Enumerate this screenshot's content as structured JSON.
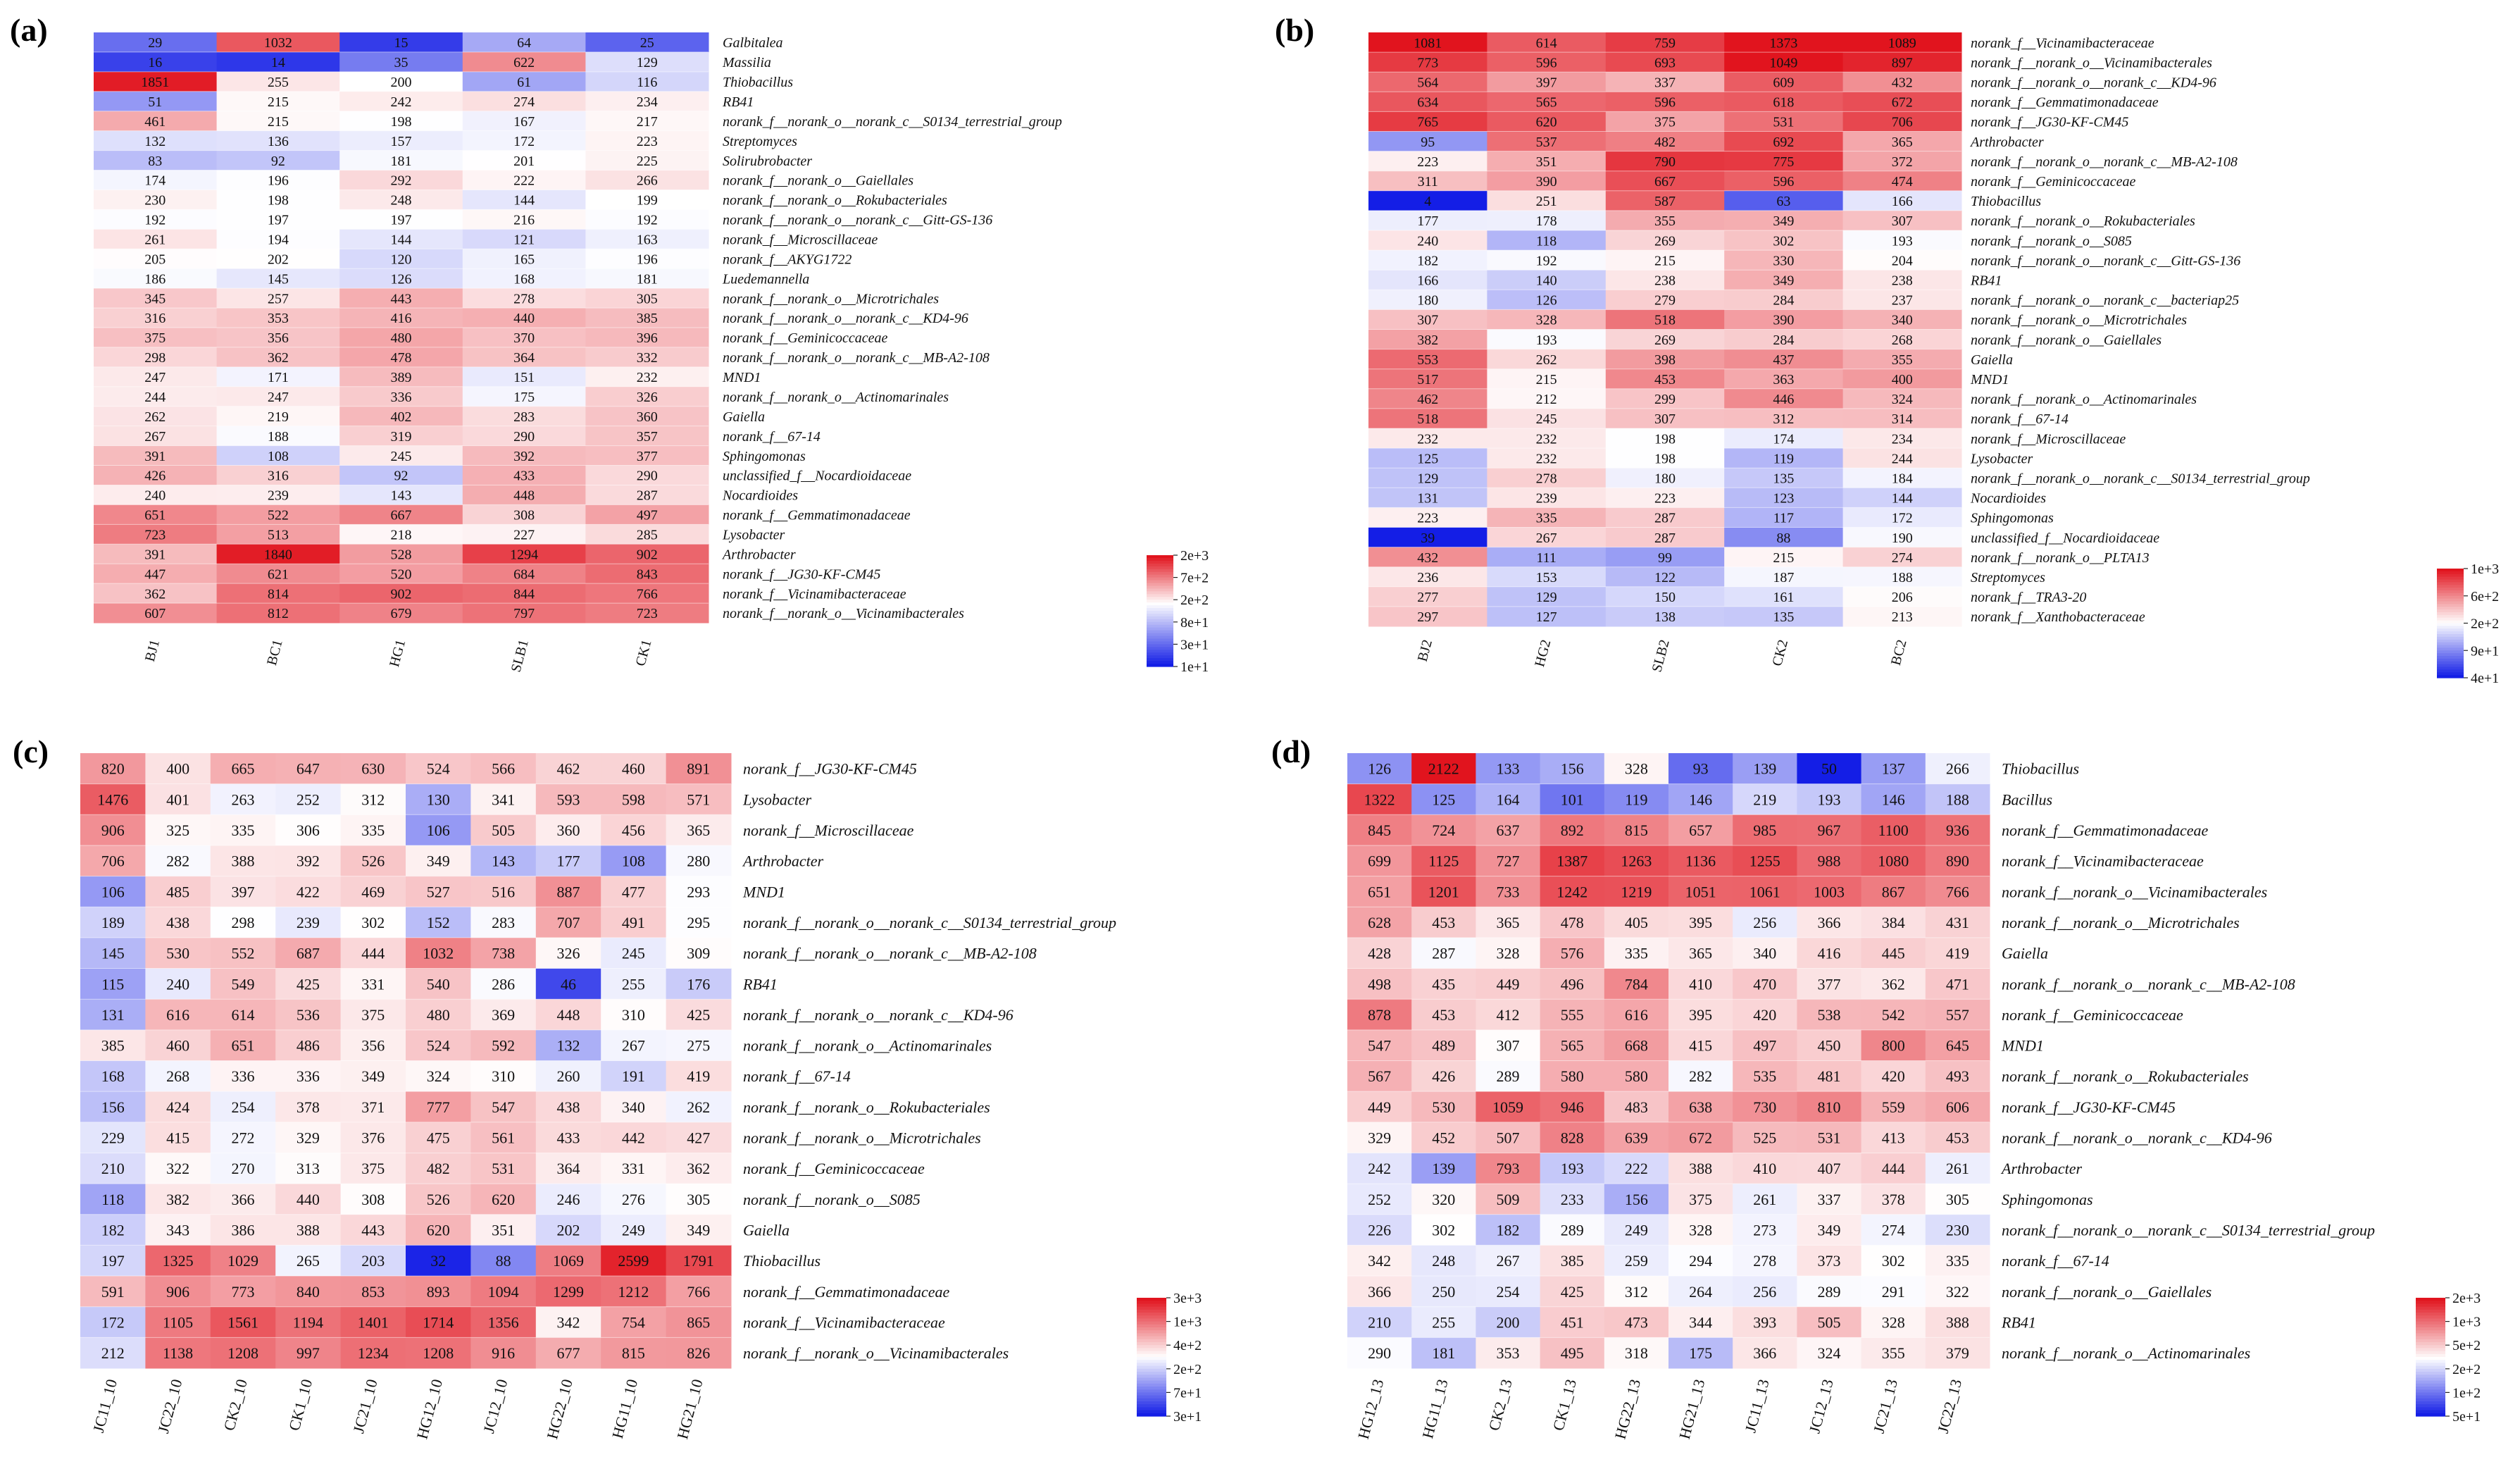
{
  "chart_data": [
    {
      "type": "heatmap",
      "panel": "(a)",
      "columns": [
        "BJ1",
        "BC1",
        "HG1",
        "SLB1",
        "CK1"
      ],
      "rows": [
        "Galbitalea",
        "Massilia",
        "Thiobacillus",
        "RB41",
        "norank_f__norank_o__norank_c__S0134_terrestrial_group",
        "Streptomyces",
        "Solirubrobacter",
        "norank_f__norank_o__Gaiellales",
        "norank_f__norank_o__Rokubacteriales",
        "norank_f__norank_o__norank_c__Gitt-GS-136",
        "norank_f__Microscillaceae",
        "norank_f__AKYG1722",
        "Luedemannella",
        "norank_f__norank_o__Microtrichales",
        "norank_f__norank_o__norank_c__KD4-96",
        "norank_f__Geminicoccaceae",
        "norank_f__norank_o__norank_c__MB-A2-108",
        "MND1",
        "norank_f__norank_o__Actinomarinales",
        "Gaiella",
        "norank_f__67-14",
        "Sphingomonas",
        "unclassified_f__Nocardioidaceae",
        "Nocardioides",
        "norank_f__Gemmatimonadaceae",
        "Lysobacter",
        "Arthrobacter",
        "norank_f__JG30-KF-CM45",
        "norank_f__Vicinamibacteraceae",
        "norank_f__norank_o__Vicinamibacterales"
      ],
      "values": [
        [
          29,
          1032,
          15,
          64,
          25
        ],
        [
          16,
          14,
          35,
          622,
          129
        ],
        [
          1851,
          255,
          200,
          61,
          116
        ],
        [
          51,
          215,
          242,
          274,
          234
        ],
        [
          461,
          215,
          198,
          167,
          217
        ],
        [
          132,
          136,
          157,
          172,
          223
        ],
        [
          83,
          92,
          181,
          201,
          225
        ],
        [
          174,
          196,
          292,
          222,
          266
        ],
        [
          230,
          198,
          248,
          144,
          199
        ],
        [
          192,
          197,
          197,
          216,
          192
        ],
        [
          261,
          194,
          144,
          121,
          163
        ],
        [
          205,
          202,
          120,
          165,
          196
        ],
        [
          186,
          145,
          126,
          168,
          181
        ],
        [
          345,
          257,
          443,
          278,
          305
        ],
        [
          316,
          353,
          416,
          440,
          385
        ],
        [
          375,
          356,
          480,
          370,
          396
        ],
        [
          298,
          362,
          478,
          364,
          332
        ],
        [
          247,
          171,
          389,
          151,
          232
        ],
        [
          244,
          247,
          336,
          175,
          326
        ],
        [
          262,
          219,
          402,
          283,
          360
        ],
        [
          267,
          188,
          319,
          290,
          357
        ],
        [
          391,
          108,
          245,
          392,
          377
        ],
        [
          426,
          316,
          92,
          433,
          290
        ],
        [
          240,
          239,
          143,
          448,
          287
        ],
        [
          651,
          522,
          667,
          308,
          497
        ],
        [
          723,
          513,
          218,
          227,
          285
        ],
        [
          391,
          1840,
          528,
          1294,
          902
        ],
        [
          447,
          621,
          520,
          684,
          843
        ],
        [
          362,
          814,
          902,
          844,
          766
        ],
        [
          607,
          812,
          679,
          797,
          723
        ]
      ],
      "scale": "log",
      "vmin": 10,
      "vmid": 200,
      "vmax": 2000,
      "legend_ticks": [
        "2e+3",
        "7e+2",
        "2e+2",
        "8e+1",
        "3e+1",
        "1e+1"
      ]
    },
    {
      "type": "heatmap",
      "panel": "(b)",
      "columns": [
        "BJ2",
        "HG2",
        "SLB2",
        "CK2",
        "BC2"
      ],
      "rows": [
        "norank_f__Vicinamibacteraceae",
        "norank_f__norank_o__Vicinamibacterales",
        "norank_f__norank_o__norank_c__KD4-96",
        "norank_f__Gemmatimonadaceae",
        "norank_f__JG30-KF-CM45",
        "Arthrobacter",
        "norank_f__norank_o__norank_c__MB-A2-108",
        "norank_f__Geminicoccaceae",
        "Thiobacillus",
        "norank_f__norank_o__Rokubacteriales",
        "norank_f__norank_o__S085",
        "norank_f__norank_o__norank_c__Gitt-GS-136",
        "RB41",
        "norank_f__norank_o__norank_c__bacteriap25",
        "norank_f__norank_o__Microtrichales",
        "norank_f__norank_o__Gaiellales",
        "Gaiella",
        "MND1",
        "norank_f__norank_o__Actinomarinales",
        "norank_f__67-14",
        "norank_f__Microscillaceae",
        "Lysobacter",
        "norank_f__norank_o__norank_c__S0134_terrestrial_group",
        "Nocardioides",
        "Sphingomonas",
        "unclassified_f__Nocardioidaceae",
        "norank_f__norank_o__PLTA13",
        "Streptomyces",
        "norank_f__TRA3-20",
        "norank_f__Xanthobacteraceae"
      ],
      "values": [
        [
          1081,
          614,
          759,
          1373,
          1089
        ],
        [
          773,
          596,
          693,
          1049,
          897
        ],
        [
          564,
          397,
          337,
          609,
          432
        ],
        [
          634,
          565,
          596,
          618,
          672
        ],
        [
          765,
          620,
          375,
          531,
          706
        ],
        [
          95,
          537,
          482,
          692,
          365
        ],
        [
          223,
          351,
          790,
          775,
          372
        ],
        [
          311,
          390,
          667,
          596,
          474
        ],
        [
          4,
          251,
          587,
          63,
          166
        ],
        [
          177,
          178,
          355,
          349,
          307
        ],
        [
          240,
          118,
          269,
          302,
          193
        ],
        [
          182,
          192,
          215,
          330,
          204
        ],
        [
          166,
          140,
          238,
          349,
          238
        ],
        [
          180,
          126,
          279,
          284,
          237
        ],
        [
          307,
          328,
          518,
          390,
          340
        ],
        [
          382,
          193,
          269,
          284,
          268
        ],
        [
          553,
          262,
          398,
          437,
          355
        ],
        [
          517,
          215,
          453,
          363,
          400
        ],
        [
          462,
          212,
          299,
          446,
          324
        ],
        [
          518,
          245,
          307,
          312,
          314
        ],
        [
          232,
          232,
          198,
          174,
          234
        ],
        [
          125,
          232,
          198,
          119,
          244
        ],
        [
          129,
          278,
          180,
          135,
          184
        ],
        [
          131,
          239,
          223,
          123,
          144
        ],
        [
          223,
          335,
          287,
          117,
          172
        ],
        [
          39,
          267,
          287,
          88,
          190
        ],
        [
          432,
          111,
          99,
          215,
          274
        ],
        [
          236,
          153,
          122,
          187,
          188
        ],
        [
          277,
          129,
          150,
          161,
          206
        ],
        [
          297,
          127,
          138,
          135,
          213
        ]
      ],
      "scale": "log",
      "vmin": 40,
      "vmid": 200,
      "vmax": 1000,
      "legend_ticks": [
        "1e+3",
        "6e+2",
        "2e+2",
        "9e+1",
        "4e+1"
      ]
    },
    {
      "type": "heatmap",
      "panel": "(c)",
      "columns": [
        "JC11_10",
        "JC22_10",
        "CK2_10",
        "CK1_10",
        "JC21_10",
        "HG12_10",
        "JC12_10",
        "HG22_10",
        "HG11_10",
        "HG21_10"
      ],
      "rows": [
        "norank_f__JG30-KF-CM45",
        "Lysobacter",
        "norank_f__Microscillaceae",
        "Arthrobacter",
        "MND1",
        "norank_f__norank_o__norank_c__S0134_terrestrial_group",
        "norank_f__norank_o__norank_c__MB-A2-108",
        "RB41",
        "norank_f__norank_o__norank_c__KD4-96",
        "norank_f__norank_o__Actinomarinales",
        "norank_f__67-14",
        "norank_f__norank_o__Rokubacteriales",
        "norank_f__norank_o__Microtrichales",
        "norank_f__Geminicoccaceae",
        "norank_f__norank_o__S085",
        "Gaiella",
        "Thiobacillus",
        "norank_f__Gemmatimonadaceae",
        "norank_f__Vicinamibacteraceae",
        "norank_f__norank_o__Vicinamibacterales"
      ],
      "values": [
        [
          820,
          400,
          665,
          647,
          630,
          524,
          566,
          462,
          460,
          891
        ],
        [
          1476,
          401,
          263,
          252,
          312,
          130,
          341,
          593,
          598,
          571
        ],
        [
          906,
          325,
          335,
          306,
          335,
          106,
          505,
          360,
          456,
          365
        ],
        [
          706,
          282,
          388,
          392,
          526,
          349,
          143,
          177,
          108,
          280
        ],
        [
          106,
          485,
          397,
          422,
          469,
          527,
          516,
          887,
          477,
          293
        ],
        [
          189,
          438,
          298,
          239,
          302,
          152,
          283,
          707,
          491,
          295
        ],
        [
          145,
          530,
          552,
          687,
          444,
          1032,
          738,
          326,
          245,
          309
        ],
        [
          115,
          240,
          549,
          425,
          331,
          540,
          286,
          46,
          255,
          176
        ],
        [
          131,
          616,
          614,
          536,
          375,
          480,
          369,
          448,
          310,
          425
        ],
        [
          385,
          460,
          651,
          486,
          356,
          524,
          592,
          132,
          267,
          275
        ],
        [
          168,
          268,
          336,
          336,
          349,
          324,
          310,
          260,
          191,
          419
        ],
        [
          156,
          424,
          254,
          378,
          371,
          777,
          547,
          438,
          340,
          262
        ],
        [
          229,
          415,
          272,
          329,
          376,
          475,
          561,
          433,
          442,
          427
        ],
        [
          210,
          322,
          270,
          313,
          375,
          482,
          531,
          364,
          331,
          362
        ],
        [
          118,
          382,
          366,
          440,
          308,
          526,
          620,
          246,
          276,
          305
        ],
        [
          182,
          343,
          386,
          388,
          443,
          620,
          351,
          202,
          249,
          349
        ],
        [
          197,
          1325,
          1029,
          265,
          203,
          32,
          88,
          1069,
          2599,
          1791
        ],
        [
          591,
          906,
          773,
          840,
          853,
          893,
          1094,
          1299,
          1212,
          766
        ],
        [
          172,
          1105,
          1561,
          1194,
          1401,
          1714,
          1356,
          342,
          754,
          865
        ],
        [
          212,
          1138,
          1208,
          997,
          1234,
          1208,
          916,
          677,
          815,
          826
        ]
      ],
      "scale": "log",
      "vmin": 30,
      "vmid": 300,
      "vmax": 3000,
      "legend_ticks": [
        "3e+3",
        "1e+3",
        "4e+2",
        "2e+2",
        "7e+1",
        "3e+1"
      ]
    },
    {
      "type": "heatmap",
      "panel": "(d)",
      "columns": [
        "HG12_13",
        "HG11_13",
        "CK2_13",
        "CK1_13",
        "HG22_13",
        "HG21_13",
        "JC11_13",
        "JC12_13",
        "JC21_13",
        "JC22_13"
      ],
      "rows": [
        "Thiobacillus",
        "Bacillus",
        "norank_f__Gemmatimonadaceae",
        "norank_f__Vicinamibacteraceae",
        "norank_f__norank_o__Vicinamibacterales",
        "norank_f__norank_o__Microtrichales",
        "Gaiella",
        "norank_f__norank_o__norank_c__MB-A2-108",
        "norank_f__Geminicoccaceae",
        "MND1",
        "norank_f__norank_o__Rokubacteriales",
        "norank_f__JG30-KF-CM45",
        "norank_f__norank_o__norank_c__KD4-96",
        "Arthrobacter",
        "Sphingomonas",
        "norank_f__norank_o__norank_c__S0134_terrestrial_group",
        "norank_f__67-14",
        "norank_f__norank_o__Gaiellales",
        "RB41",
        "norank_f__norank_o__Actinomarinales"
      ],
      "values": [
        [
          126,
          2122,
          133,
          156,
          328,
          93,
          139,
          50,
          137,
          266
        ],
        [
          1322,
          125,
          164,
          101,
          119,
          146,
          219,
          193,
          146,
          188
        ],
        [
          845,
          724,
          637,
          892,
          815,
          657,
          985,
          967,
          1100,
          936
        ],
        [
          699,
          1125,
          727,
          1387,
          1263,
          1136,
          1255,
          988,
          1080,
          890
        ],
        [
          651,
          1201,
          733,
          1242,
          1219,
          1051,
          1061,
          1003,
          867,
          766
        ],
        [
          628,
          453,
          365,
          478,
          405,
          395,
          256,
          366,
          384,
          431
        ],
        [
          428,
          287,
          328,
          576,
          335,
          365,
          340,
          416,
          445,
          419
        ],
        [
          498,
          435,
          449,
          496,
          784,
          410,
          470,
          377,
          362,
          471
        ],
        [
          878,
          453,
          412,
          555,
          616,
          395,
          420,
          538,
          542,
          557
        ],
        [
          547,
          489,
          307,
          565,
          668,
          415,
          497,
          450,
          800,
          645
        ],
        [
          567,
          426,
          289,
          580,
          580,
          282,
          535,
          481,
          420,
          493
        ],
        [
          449,
          530,
          1059,
          946,
          483,
          638,
          730,
          810,
          559,
          606
        ],
        [
          329,
          452,
          507,
          828,
          639,
          672,
          525,
          531,
          413,
          453
        ],
        [
          242,
          139,
          793,
          193,
          222,
          388,
          410,
          407,
          444,
          261
        ],
        [
          252,
          320,
          509,
          233,
          156,
          375,
          261,
          337,
          378,
          305
        ],
        [
          226,
          302,
          182,
          289,
          249,
          328,
          273,
          349,
          274,
          230
        ],
        [
          342,
          248,
          267,
          385,
          259,
          294,
          278,
          373,
          302,
          335
        ],
        [
          366,
          250,
          254,
          425,
          312,
          264,
          256,
          289,
          291,
          322
        ],
        [
          210,
          255,
          200,
          451,
          473,
          344,
          393,
          505,
          328,
          388
        ],
        [
          290,
          181,
          353,
          495,
          318,
          175,
          366,
          324,
          355,
          379
        ]
      ],
      "scale": "log",
      "vmin": 50,
      "vmid": 300,
      "vmax": 2000,
      "legend_ticks": [
        "2e+3",
        "1e+3",
        "5e+2",
        "2e+2",
        "1e+2",
        "5e+1"
      ]
    }
  ]
}
